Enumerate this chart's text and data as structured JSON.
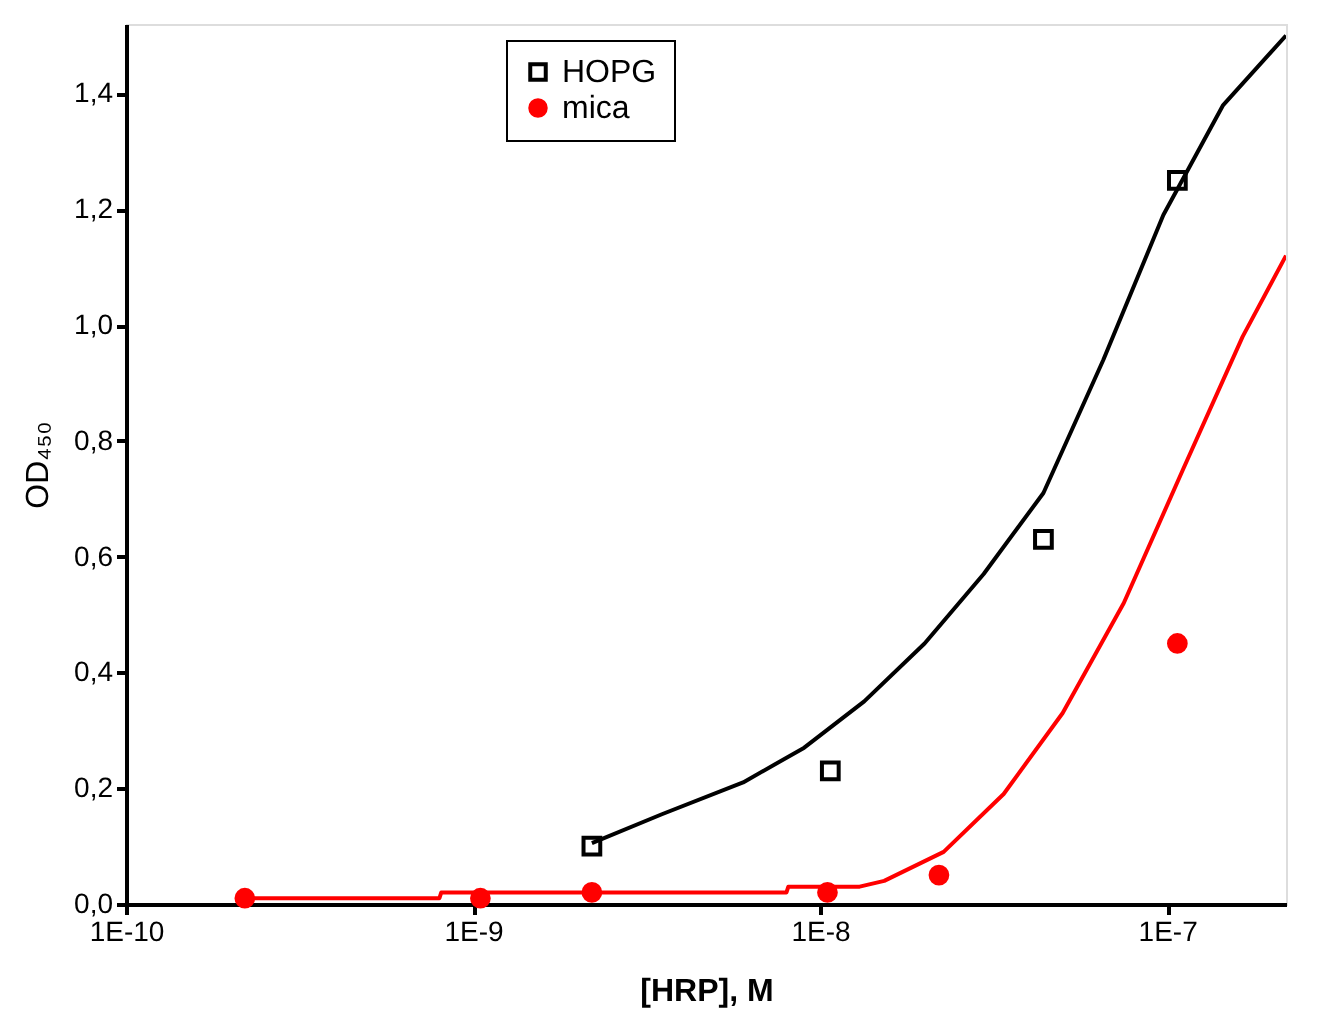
{
  "chart_data": {
    "type": "scatter",
    "xlabel": "[HRP], M",
    "ylabel": "OD₄₅₀",
    "log": "x",
    "xlim": [
      1e-10,
      2.2e-07
    ],
    "ylim": [
      0,
      1.52
    ],
    "xticks": [
      {
        "value": 1e-10,
        "label": "1E-10"
      },
      {
        "value": 1e-09,
        "label": "1E-9"
      },
      {
        "value": 1e-08,
        "label": "1E-8"
      },
      {
        "value": 1e-07,
        "label": "1E-7"
      }
    ],
    "yticks": [
      {
        "value": 0,
        "label": "0,0"
      },
      {
        "value": 0.2,
        "label": "0,2"
      },
      {
        "value": 0.4,
        "label": "0,4"
      },
      {
        "value": 0.6,
        "label": "0,6"
      },
      {
        "value": 0.8,
        "label": "0,8"
      },
      {
        "value": 1.0,
        "label": "1,0"
      },
      {
        "value": 1.2,
        "label": "1,2"
      },
      {
        "value": 1.4,
        "label": "1,4"
      }
    ],
    "grid": false,
    "legend": "top left",
    "series": [
      {
        "name": "HOPG",
        "marker": "square",
        "color": "#000000",
        "x": [
          2.2e-09,
          1.07e-08,
          4.4e-08,
          1.07e-07
        ],
        "values": [
          0.1,
          0.23,
          0.63,
          1.25
        ]
      },
      {
        "name": "mica",
        "marker": "circle",
        "color": "#ff0000",
        "x": [
          2.2e-10,
          1.05e-09,
          2.2e-09,
          1.05e-08,
          2.2e-08,
          1.07e-07
        ],
        "values": [
          0.01,
          0.01,
          0.02,
          0.02,
          0.05,
          0.45
        ]
      },
      {
        "type": "line",
        "color": "#000000",
        "line_style": "solid",
        "x": [
          2.2e-09,
          3.5e-09,
          6e-09,
          9e-09,
          1.34e-08,
          2e-08,
          2.96e-08,
          4.4e-08,
          6.55e-08,
          9.75e-08,
          1.45e-07,
          2.2e-07
        ],
        "values": [
          0.105,
          0.155,
          0.21,
          0.27,
          0.35,
          0.45,
          0.57,
          0.71,
          0.94,
          1.19,
          1.38,
          1.5
        ]
      },
      {
        "type": "line",
        "color": "#ff0000",
        "line_style": "solid",
        "x": [
          2.2e-10,
          8e-10,
          8.1e-10,
          8e-09,
          8.1e-09,
          1.3e-08,
          1.53e-08,
          2.27e-08,
          3.38e-08,
          5e-08,
          7.5e-08,
          1.11e-07,
          1.65e-07,
          2.2e-07
        ],
        "values": [
          0.01,
          0.01,
          0.02,
          0.02,
          0.03,
          0.03,
          0.04,
          0.09,
          0.19,
          0.33,
          0.52,
          0.75,
          0.98,
          1.12
        ]
      }
    ]
  }
}
